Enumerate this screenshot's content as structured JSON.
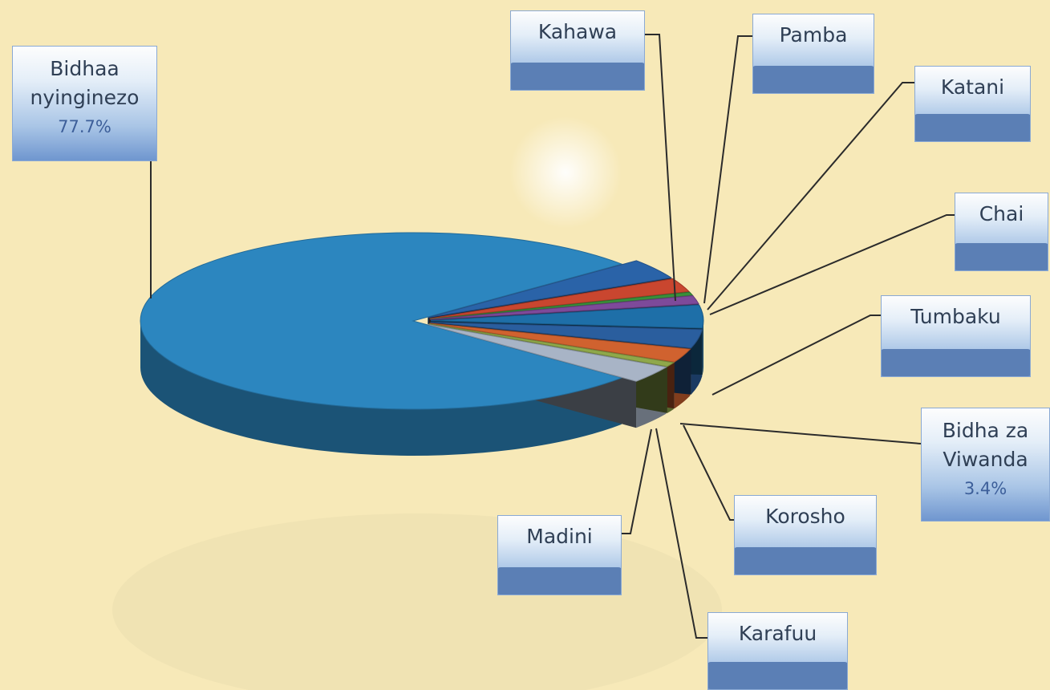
{
  "chart_data": {
    "type": "pie",
    "title": "",
    "slices": [
      {
        "label": "Bidhaa nyinginezo",
        "value": 77.7,
        "value_text": "77.7%",
        "value_visible": true,
        "color": "#2c86bf"
      },
      {
        "label": "Kahawa",
        "value": 3.7,
        "value_text": "3.7%",
        "value_visible": false,
        "color": "#2a63a8"
      },
      {
        "label": "Pamba",
        "value": 2.5,
        "value_text": "",
        "value_visible": false,
        "color": "#c9462f"
      },
      {
        "label": "Katani",
        "value": 0.6,
        "value_text": "0.6%",
        "value_visible": false,
        "color": "#3a8f3a"
      },
      {
        "label": "Chai",
        "value": 1.5,
        "value_text": "1.5%",
        "value_visible": false,
        "color": "#7e4a9a"
      },
      {
        "label": "Tumbaku",
        "value": 4.2,
        "value_text": "",
        "value_visible": false,
        "color": "#1e6fa8"
      },
      {
        "label": "Bidha za Viwanda",
        "value": 3.4,
        "value_text": "3.4%",
        "value_visible": true,
        "color": "#2a5e9e"
      },
      {
        "label": "Korosho",
        "value": 2.5,
        "value_text": "",
        "value_visible": false,
        "color": "#d0622f"
      },
      {
        "label": "Karafuu",
        "value": 0.8,
        "value_text": "",
        "value_visible": false,
        "color": "#8fa84a"
      },
      {
        "label": "Madini",
        "value": 3.1,
        "value_text": "",
        "value_visible": false,
        "color": "#a8b4c6"
      }
    ]
  }
}
